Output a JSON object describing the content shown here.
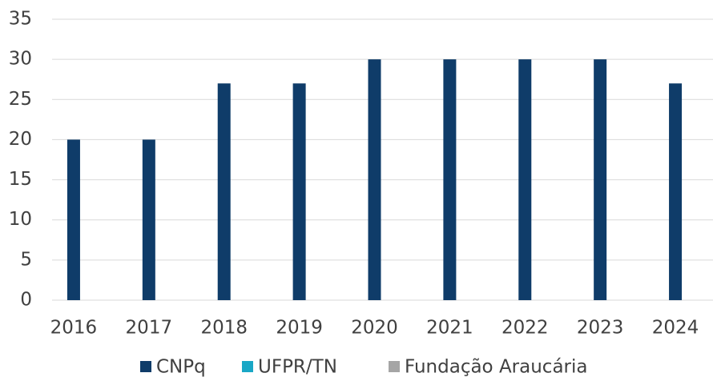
{
  "chart_data": {
    "type": "bar",
    "stacked": true,
    "categories": [
      "2016",
      "2017",
      "2018",
      "2019",
      "2020",
      "2021",
      "2022",
      "2023",
      "2024"
    ],
    "series": [
      {
        "name": "CNPq",
        "color": "#0f3c69",
        "values": [
          20,
          20,
          27,
          27,
          30,
          30,
          30,
          30,
          27
        ]
      },
      {
        "name": "UFPR/TN",
        "color": "#19a7c6",
        "values": [
          0,
          0,
          0,
          0,
          0,
          0,
          0,
          0,
          0
        ]
      },
      {
        "name": "Fundação Araucária",
        "color": "#a5a5a5",
        "values": [
          0,
          0,
          0,
          0,
          0,
          0,
          0,
          0,
          0
        ]
      }
    ],
    "ylim": [
      0,
      35
    ],
    "yticks": [
      0,
      5,
      10,
      15,
      20,
      25,
      30,
      35
    ],
    "grid": true,
    "legend": "bottom"
  }
}
